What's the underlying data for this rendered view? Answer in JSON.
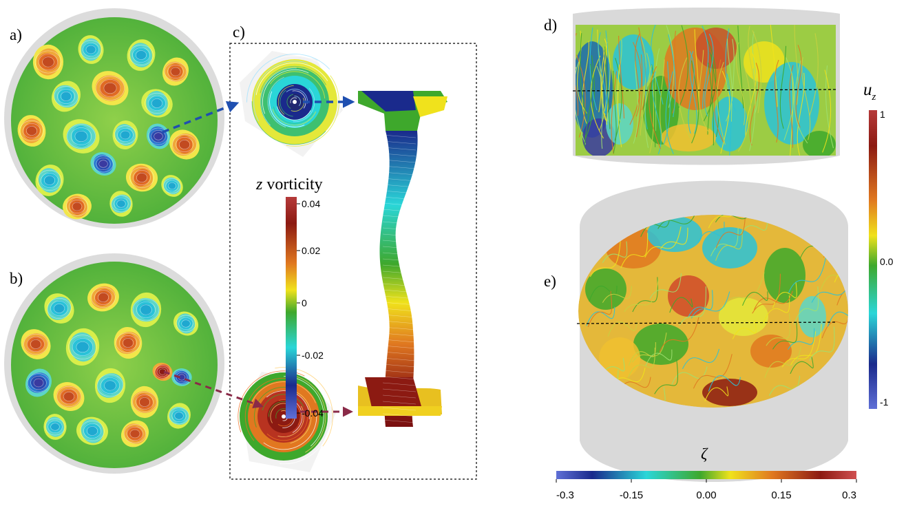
{
  "panels": {
    "a": "a)",
    "b": "b)",
    "c": "c)",
    "d": "d)",
    "e": "e)"
  },
  "vorticity_colorbar": {
    "title_var": "z",
    "title_word": " vorticity",
    "ticks": [
      "0.04",
      "0.02",
      "0",
      "-0.02",
      "-0.04"
    ]
  },
  "uz_colorbar": {
    "title_main": "u",
    "title_sub": "z",
    "ticks": [
      "1",
      "0.0",
      "-1"
    ]
  },
  "zeta_colorbar": {
    "title": "ζ",
    "ticks": [
      "-0.3",
      "-0.15",
      "0.00",
      "0.15",
      "0.3"
    ]
  },
  "colors": {
    "arrow_blue": "#1f4fb0",
    "arrow_maroon": "#8a2a48",
    "container_gray": "#d9d9d9"
  }
}
